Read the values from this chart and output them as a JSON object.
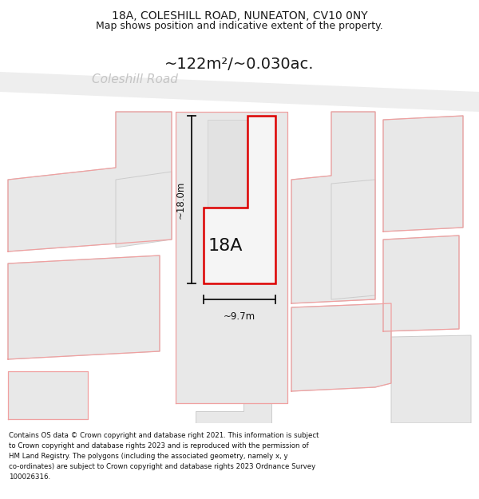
{
  "title_line1": "18A, COLESHILL ROAD, NUNEATON, CV10 0NY",
  "title_line2": "Map shows position and indicative extent of the property.",
  "area_label": "~122m²/~0.030ac.",
  "road_label": "Coleshill Road",
  "label_18A": "18A",
  "dim_height": "~18.0m",
  "dim_width": "~9.7m",
  "footer_lines": [
    "Contains OS data © Crown copyright and database right 2021. This information is subject",
    "to Crown copyright and database rights 2023 and is reproduced with the permission of",
    "HM Land Registry. The polygons (including the associated geometry, namely x, y",
    "co-ordinates) are subject to Crown copyright and database rights 2023 Ordnance Survey",
    "100026316."
  ],
  "bg_color": "#ffffff",
  "map_bg": "#ffffff",
  "building_fill": "#e8e8e8",
  "building_edge_color": "#cccccc",
  "plot_outline_color": "#f0a0a0",
  "red_outline_color": "#dd0000",
  "road_fill": "#eeeeee",
  "dim_color": "#111111",
  "road_label_color": "#c0c0c0",
  "area_label_color": "#1a1a1a",
  "title_color": "#1a1a1a",
  "footer_color": "#111111"
}
